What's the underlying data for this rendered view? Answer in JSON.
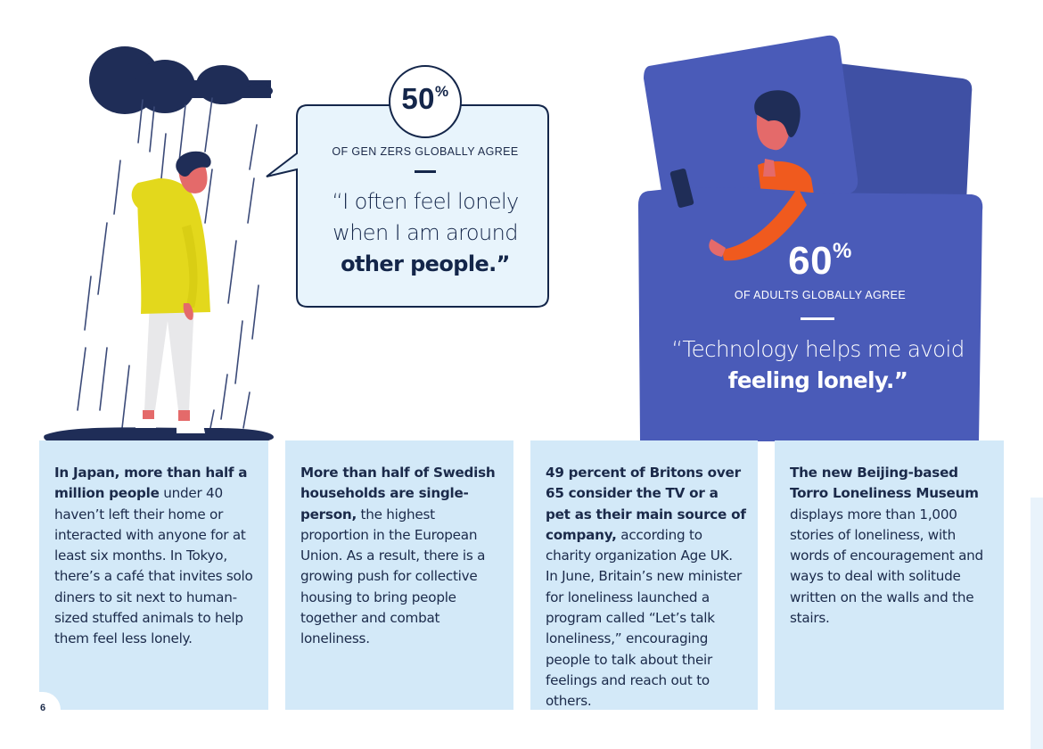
{
  "stats": [
    {
      "value": "50",
      "unit": "%",
      "caption": "OF GEN ZERS GLOBALLY AGREE",
      "quote_line1": "“I often feel lonely",
      "quote_line2": "when I am around",
      "quote_bold": "other people.”"
    },
    {
      "value": "60",
      "unit": "%",
      "caption": "OF ADULTS GLOBALLY AGREE",
      "quote_line1": "“Technology helps me avoid",
      "quote_bold": "feeling lonely.”"
    }
  ],
  "facts": [
    {
      "bold": "In Japan, more than half a million people",
      "text": " under 40 haven’t left their home or interacted with anyone for at least six months. In Tokyo, there’s a café that invites solo diners to sit next to human-sized stuffed animals to help them feel less lonely."
    },
    {
      "bold": "More than half of Swedish households are single-person,",
      "text": " the highest proportion in the European Union. As a result, there is a growing push for collective housing to bring people together and combat loneliness."
    },
    {
      "bold": "49 percent of Britons over 65 consider the TV or a pet as their main source of company,",
      "text": " according to charity organization Age UK. In June, Britain’s new minister for loneliness launched a program called “Let’s talk loneliness,” encouraging people to talk about their feelings and reach out to others."
    },
    {
      "bold": "The new Beijing-based Torro Loneliness Museum",
      "text": " displays more than 1,000 stories of loneliness, with words of encouragement and ways to deal with solitude written on the walls and the stairs."
    }
  ],
  "page_number": "6",
  "colors": {
    "navy": "#1f2d57",
    "bed_blue": "#4a5bb8",
    "card_blue": "#d3e9f8",
    "bubble_fill": "#e8f4fc",
    "raincoat_yellow": "#e3d81c",
    "sweater_orange": "#f05a1e"
  },
  "icons": [
    "rain-cloud-icon",
    "person-in-rain-illustration",
    "person-in-bed-with-phone-illustration"
  ]
}
